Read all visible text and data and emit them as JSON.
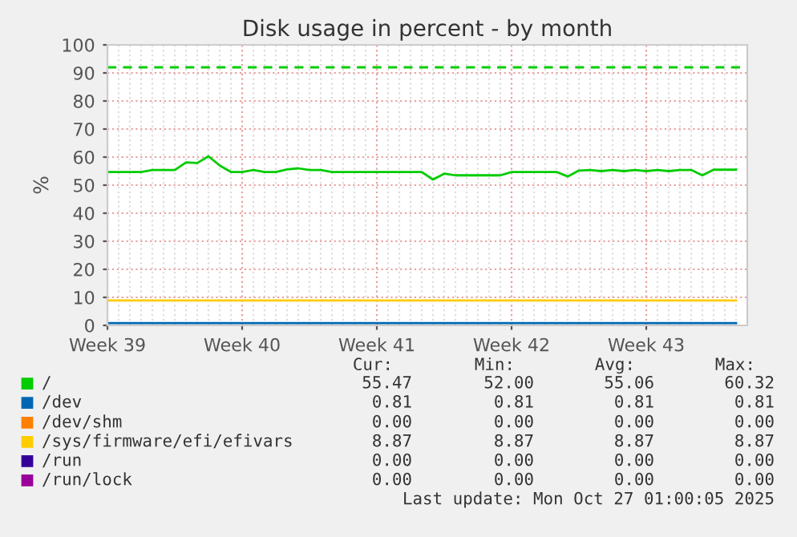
{
  "chart_data": {
    "type": "line",
    "title": "Disk usage in percent - by month",
    "ylabel": "%",
    "categories": [
      "Week 39",
      null,
      null,
      null,
      null,
      null,
      null,
      null,
      null,
      null,
      null,
      null,
      "Week 40",
      null,
      null,
      null,
      null,
      null,
      null,
      null,
      null,
      null,
      null,
      null,
      "Week 41",
      null,
      null,
      null,
      null,
      null,
      null,
      null,
      null,
      null,
      null,
      null,
      "Week 42",
      null,
      null,
      null,
      null,
      null,
      null,
      null,
      null,
      null,
      null,
      null,
      "Week 43",
      null,
      null,
      null,
      null,
      null,
      null,
      null,
      null
    ],
    "ylim": [
      0,
      100
    ],
    "yticks": [
      0,
      10,
      20,
      30,
      40,
      50,
      60,
      70,
      80,
      90,
      100
    ],
    "grid": true,
    "legend": "bottom",
    "marker": "none",
    "line_style": "solid",
    "ref_lines": [
      {
        "axis": "y",
        "value": 92,
        "color": "#00cc00",
        "line_style": "dashed"
      }
    ],
    "series": [
      {
        "name": "/",
        "color": "#00cc00",
        "values": [
          54.7,
          54.7,
          54.7,
          54.7,
          55.4,
          55.4,
          55.4,
          58.1,
          57.9,
          60.3,
          57.0,
          54.7,
          54.7,
          55.4,
          54.7,
          54.7,
          55.6,
          56.0,
          55.4,
          55.4,
          54.7,
          54.7,
          54.7,
          54.7,
          54.7,
          54.7,
          54.7,
          54.7,
          54.7,
          52.0,
          54.1,
          53.5,
          53.5,
          53.5,
          53.5,
          53.5,
          54.7,
          54.7,
          54.7,
          54.7,
          54.7,
          53.1,
          55.2,
          55.4,
          55.0,
          55.4,
          55.0,
          55.4,
          55.0,
          55.4,
          55.0,
          55.4,
          55.4,
          53.5,
          55.5,
          55.5,
          55.5
        ]
      },
      {
        "name": "/dev",
        "color": "#0066b3",
        "values": [
          0.8,
          0.8,
          0.8,
          0.8,
          0.8,
          0.8,
          0.8,
          0.8,
          0.8,
          0.8,
          0.8,
          0.8,
          0.8,
          0.8,
          0.8,
          0.8,
          0.8,
          0.8,
          0.8,
          0.8,
          0.8,
          0.8,
          0.8,
          0.8,
          0.8,
          0.8,
          0.8,
          0.8,
          0.8,
          0.8,
          0.8,
          0.8,
          0.8,
          0.8,
          0.8,
          0.8,
          0.8,
          0.8,
          0.8,
          0.8,
          0.8,
          0.8,
          0.8,
          0.8,
          0.8,
          0.8,
          0.8,
          0.8,
          0.8,
          0.8,
          0.8,
          0.8,
          0.8,
          0.8,
          0.8,
          0.8,
          0.8
        ]
      },
      {
        "name": "/dev/shm",
        "color": "#ff8000",
        "values": [
          null,
          null,
          null,
          null,
          null,
          null,
          null,
          null,
          null,
          null,
          null,
          null,
          null,
          null,
          null,
          null,
          null,
          null,
          null,
          null,
          null,
          null,
          null,
          null,
          null,
          null,
          null,
          null,
          null,
          null,
          null,
          null,
          null,
          null,
          null,
          null,
          null,
          null,
          null,
          null,
          null,
          null,
          null,
          null,
          null,
          null,
          null,
          null,
          null,
          null,
          null,
          null,
          null,
          null,
          null,
          null,
          null
        ]
      },
      {
        "name": "/sys/firmware/efi/efivars",
        "color": "#ffcc00",
        "values": [
          8.9,
          8.9,
          8.9,
          8.9,
          8.9,
          8.9,
          8.9,
          8.9,
          8.9,
          8.9,
          8.9,
          8.9,
          8.9,
          8.9,
          8.9,
          8.9,
          8.9,
          8.9,
          8.9,
          8.9,
          8.9,
          8.9,
          8.9,
          8.9,
          8.9,
          8.9,
          8.9,
          8.9,
          8.9,
          8.9,
          8.9,
          8.9,
          8.9,
          8.9,
          8.9,
          8.9,
          8.9,
          8.9,
          8.9,
          8.9,
          8.9,
          8.9,
          8.9,
          8.9,
          8.9,
          8.9,
          8.9,
          8.9,
          8.9,
          8.9,
          8.9,
          8.9,
          8.9,
          8.9,
          8.9,
          8.9,
          8.9
        ]
      },
      {
        "name": "/run",
        "color": "#330099",
        "values": [
          null,
          null,
          null,
          null,
          null,
          null,
          null,
          null,
          null,
          null,
          null,
          null,
          null,
          null,
          null,
          null,
          null,
          null,
          null,
          null,
          null,
          null,
          null,
          null,
          null,
          null,
          null,
          null,
          null,
          null,
          null,
          null,
          null,
          null,
          null,
          null,
          null,
          null,
          null,
          null,
          null,
          null,
          null,
          null,
          null,
          null,
          null,
          null,
          null,
          null,
          null,
          null,
          null,
          null,
          null,
          null,
          null
        ]
      },
      {
        "name": "/run/lock",
        "color": "#990099",
        "values": [
          null,
          null,
          null,
          null,
          null,
          null,
          null,
          null,
          null,
          null,
          null,
          null,
          null,
          null,
          null,
          null,
          null,
          null,
          null,
          null,
          null,
          null,
          null,
          null,
          null,
          null,
          null,
          null,
          null,
          null,
          null,
          null,
          null,
          null,
          null,
          null,
          null,
          null,
          null,
          null,
          null,
          null,
          null,
          null,
          null,
          null,
          null,
          null,
          null,
          null,
          null,
          null,
          null,
          null,
          null,
          null,
          null
        ]
      }
    ],
    "annotations": [
      "Cur: Min: Avg: Max:",
      "55.47 52.00 55.06 60.32",
      "0.81 0.81 0.81 0.81",
      "0.00 0.00 0.00 0.00",
      "8.87 8.87 8.87 8.87",
      "0.00 0.00 0.00 0.00",
      "0.00 0.00 0.00 0.00",
      "Last update: Mon Oct 27 01:00:05 2025"
    ]
  }
}
